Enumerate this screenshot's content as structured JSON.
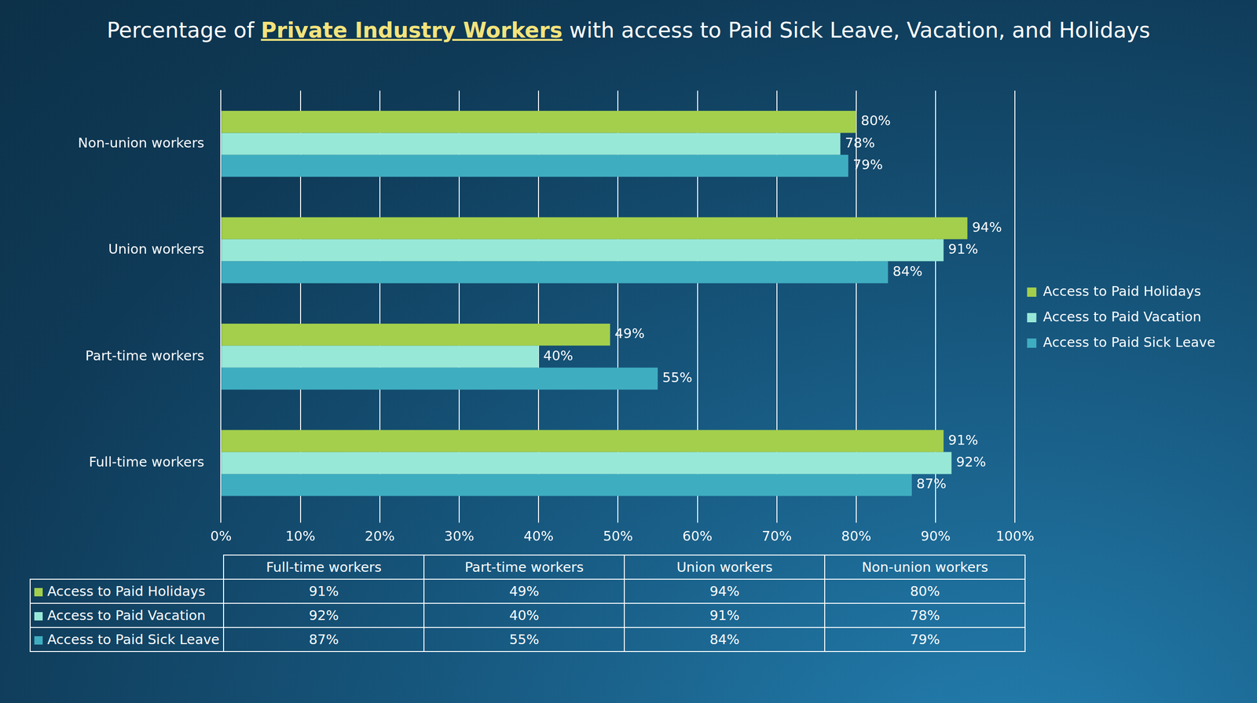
{
  "chart_data": {
    "type": "bar",
    "orientation": "horizontal",
    "title": "Percentage of Private Industry Workers with access to Paid Sick Leave, Vacation, and Holidays",
    "title_highlight": "Private Industry Workers",
    "categories": [
      "Non-union workers",
      "Union workers",
      "Part-time workers",
      "Full-time workers"
    ],
    "series": [
      {
        "name": "Access to Paid Holidays",
        "color": "#a3cf4c",
        "values": [
          80,
          94,
          49,
          91
        ],
        "value_labels": [
          "80%",
          "94%",
          "49%",
          "91%"
        ]
      },
      {
        "name": "Access to Paid Vacation",
        "color": "#98e8d7",
        "values": [
          78,
          91,
          40,
          92
        ],
        "value_labels": [
          "78%",
          "91%",
          "40%",
          "92%"
        ]
      },
      {
        "name": "Access to Paid Sick Leave",
        "color": "#3fadc0",
        "values": [
          79,
          84,
          55,
          87
        ],
        "value_labels": [
          "79%",
          "84%",
          "55%",
          "87%"
        ]
      }
    ],
    "xlim": [
      0,
      100
    ],
    "xticks": [
      {
        "value": 0,
        "label": "0%"
      },
      {
        "value": 10,
        "label": "10%"
      },
      {
        "value": 20,
        "label": "20%"
      },
      {
        "value": 30,
        "label": "30%"
      },
      {
        "value": 40,
        "label": "40%"
      },
      {
        "value": 50,
        "label": "50%"
      },
      {
        "value": 60,
        "label": "60%"
      },
      {
        "value": 70,
        "label": "70%"
      },
      {
        "value": 80,
        "label": "80%"
      },
      {
        "value": 90,
        "label": "90%"
      },
      {
        "value": 100,
        "label": "100%"
      }
    ],
    "grid": true,
    "legend": "right",
    "data_labels": true
  },
  "table": {
    "columns": [
      "Full-time workers",
      "Part-time workers",
      "Union workers",
      "Non-union workers"
    ],
    "rows": [
      {
        "name": "Access to Paid Holidays",
        "color": "#a3cf4c",
        "cells": [
          "91%",
          "49%",
          "94%",
          "80%"
        ]
      },
      {
        "name": "Access to Paid Vacation",
        "color": "#98e8d7",
        "cells": [
          "92%",
          "40%",
          "91%",
          "78%"
        ]
      },
      {
        "name": "Access to Paid Sick Leave",
        "color": "#3fadc0",
        "cells": [
          "87%",
          "55%",
          "84%",
          "79%"
        ]
      }
    ]
  }
}
